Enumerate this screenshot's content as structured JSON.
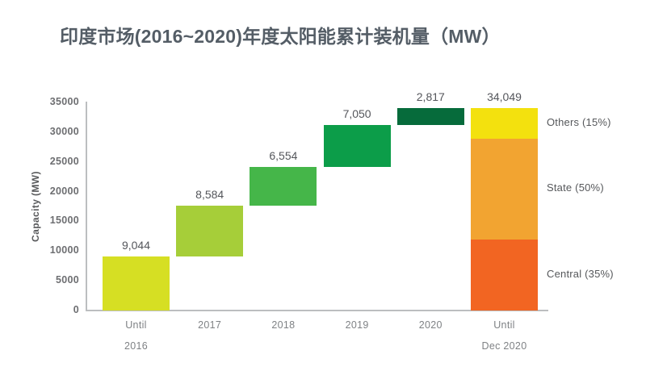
{
  "title": "印度市场(2016~2020)年度太阳能累计装机量（MW）",
  "colors": {
    "title_text": "#545d66",
    "value_label_text": "#54565b",
    "tick_text": "#6d6e71",
    "category_text": "#7f8285",
    "segment_label_text": "#56585b",
    "axis_line": "#bcbec0",
    "background": "#ffffff"
  },
  "chart_data": {
    "type": "bar",
    "subtype": "waterfall-with-stacked-total",
    "title": "印度市场(2016~2020)年度太阳能累计装机量（MW）",
    "xlabel": "",
    "ylabel": "Capacity (MW)",
    "ylim": [
      0,
      35000
    ],
    "yticks": [
      "0",
      "5000",
      "10000",
      "15000",
      "20000",
      "25000",
      "30000",
      "35000"
    ],
    "ytick_values": [
      0,
      5000,
      10000,
      15000,
      20000,
      25000,
      30000,
      35000
    ],
    "grid": false,
    "legend": false,
    "categories": [
      "Until 2016",
      "2017",
      "2018",
      "2019",
      "2020",
      "Until Dec 2020"
    ],
    "steps": [
      {
        "category_lines": [
          "Until",
          "2016"
        ],
        "value": 9044,
        "label": "9,044",
        "color": "#d6df23"
      },
      {
        "category_lines": [
          "2017"
        ],
        "value": 8584,
        "label": "8,584",
        "color": "#a6ce39"
      },
      {
        "category_lines": [
          "2018"
        ],
        "value": 6554,
        "label": "6,554",
        "color": "#45b649"
      },
      {
        "category_lines": [
          "2019"
        ],
        "value": 7050,
        "label": "7,050",
        "color": "#0c9d49"
      },
      {
        "category_lines": [
          "2020"
        ],
        "value": 2817,
        "label": "2,817",
        "color": "#066b3b"
      }
    ],
    "total": {
      "category_lines": [
        "Until",
        "Dec 2020"
      ],
      "value": 34049,
      "label": "34,049",
      "segments_bottom_to_top": [
        {
          "name": "Central",
          "label": "Central (35%)",
          "fraction": 0.35,
          "color": "#f26522"
        },
        {
          "name": "State",
          "label": "State (50%)",
          "fraction": 0.5,
          "color": "#f2a431"
        },
        {
          "name": "Others",
          "label": "Others (15%)",
          "fraction": 0.15,
          "color": "#f3e10e"
        }
      ]
    }
  }
}
